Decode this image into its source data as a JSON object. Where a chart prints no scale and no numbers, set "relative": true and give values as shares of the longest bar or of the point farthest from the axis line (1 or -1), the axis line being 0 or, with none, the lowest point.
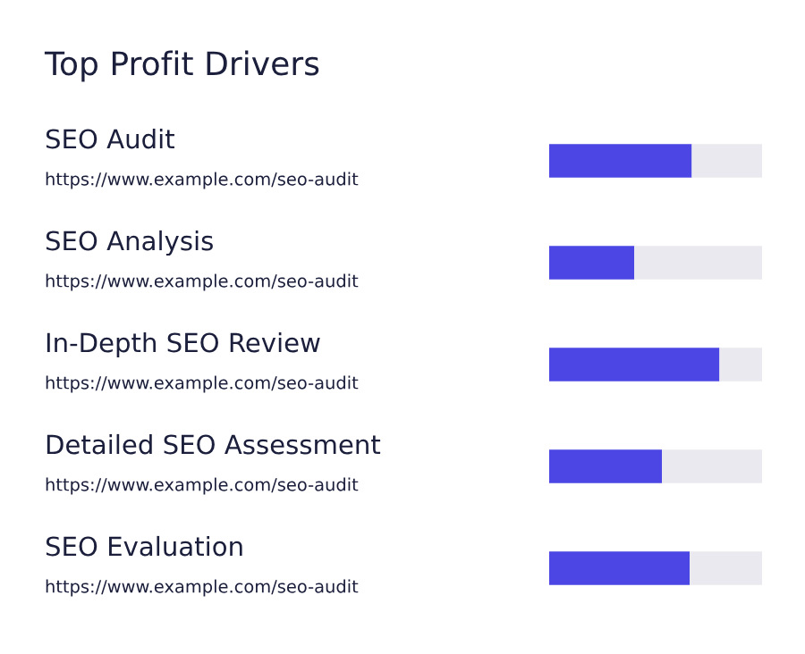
{
  "chart_data": {
    "type": "bar",
    "orientation": "horizontal",
    "stacked": true,
    "relative": true,
    "title": "Top Profit Drivers",
    "categories": [
      "SEO Audit",
      "SEO Analysis",
      "In-Depth SEO Review",
      "Detailed SEO Assessment",
      "SEO Evaluation"
    ],
    "annotations": [
      "https://www.example.com/seo-audit",
      "https://www.example.com/seo-audit",
      "https://www.example.com/seo-audit",
      "https://www.example.com/seo-audit",
      "https://www.example.com/seo-audit"
    ],
    "series": [
      {
        "color": "#4c47e4",
        "values": [
          0.67,
          0.4,
          0.8,
          0.53,
          0.66
        ]
      },
      {
        "color": "#e9e9ef",
        "values": [
          0.33,
          0.6,
          0.2,
          0.47,
          0.34
        ]
      }
    ]
  }
}
